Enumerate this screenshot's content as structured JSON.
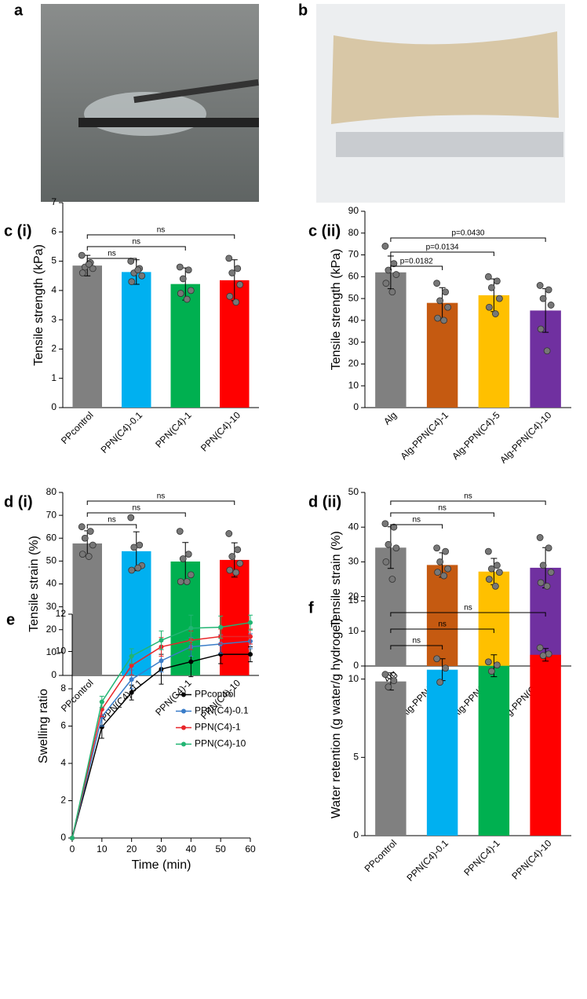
{
  "images": [
    {
      "panel": "a"
    },
    {
      "panel": "b"
    }
  ],
  "chart_data": [
    {
      "type": "bar",
      "panel": "c (i)",
      "y_label": "Tensile strength (kPa)",
      "categories": [
        "PPcontrol",
        "PPN(C4)-0.1",
        "PPN(C4)-1",
        "PPN(C4)-10"
      ],
      "values": [
        4.85,
        4.63,
        4.22,
        4.35
      ],
      "errors": [
        0.35,
        0.42,
        0.55,
        0.7
      ],
      "colors": [
        "#808080",
        "#00b0f0",
        "#00b050",
        "#ff0000"
      ],
      "points": [
        [
          5.2,
          4.95,
          4.8,
          4.75,
          4.6,
          4.9
        ],
        [
          5.0,
          4.75,
          4.6,
          4.5,
          4.3,
          4.7
        ],
        [
          4.8,
          4.7,
          4.4,
          4.0,
          3.9,
          3.7
        ],
        [
          5.1,
          4.75,
          4.6,
          4.2,
          3.8,
          3.6
        ]
      ],
      "comparisons": [
        {
          "label": "ns",
          "pair": [
            "PPcontrol",
            "PPN(C4)-0.1"
          ]
        },
        {
          "label": "ns",
          "pair": [
            "PPcontrol",
            "PPN(C4)-1"
          ]
        },
        {
          "label": "ns",
          "pair": [
            "PPcontrol",
            "PPN(C4)-10"
          ]
        }
      ],
      "ylim": [
        0,
        7
      ],
      "yticks": [
        0,
        1,
        2,
        3,
        4,
        5,
        6,
        7
      ]
    },
    {
      "type": "bar",
      "panel": "c (ii)",
      "y_label": "Tensile strength (kPa)",
      "categories": [
        "Alg",
        "Alg-PPN(C4)-1",
        "Alg-PPN(C4)-5",
        "Alg-PPN(C4)-10"
      ],
      "values": [
        62,
        48,
        51.5,
        44.5
      ],
      "errors": [
        7.5,
        7,
        7.5,
        10
      ],
      "colors": [
        "#808080",
        "#c55a11",
        "#ffc000",
        "#7030a0"
      ],
      "points": [
        [
          74,
          66,
          63,
          61,
          57,
          53
        ],
        [
          57,
          53,
          49,
          46,
          41,
          40
        ],
        [
          60,
          58,
          55,
          50,
          46,
          43
        ],
        [
          56,
          54,
          50,
          47,
          36,
          26
        ]
      ],
      "comparisons": [
        {
          "label": "p=0.0182",
          "pair": [
            "Alg",
            "Alg-PPN(C4)-1"
          ]
        },
        {
          "label": "p=0.0134",
          "pair": [
            "Alg",
            "Alg-PPN(C4)-5"
          ]
        },
        {
          "label": "p=0.0430",
          "pair": [
            "Alg",
            "Alg-PPN(C4)-10"
          ]
        }
      ],
      "ylim": [
        0,
        90
      ],
      "yticks": [
        0,
        10,
        20,
        30,
        40,
        50,
        60,
        70,
        80,
        90
      ]
    },
    {
      "type": "bar",
      "panel": "d (i)",
      "y_label": "Tensile strain (%)",
      "categories": [
        "PPcontrol",
        "PPN(C4)-0.1",
        "PPN(C4)-1",
        "PPN(C4)-10"
      ],
      "values": [
        57.7,
        54.3,
        49.8,
        50.5
      ],
      "errors": [
        5.5,
        8.5,
        8.3,
        7.5
      ],
      "colors": [
        "#808080",
        "#00b0f0",
        "#00b050",
        "#ff0000"
      ],
      "points": [
        [
          65,
          63,
          60,
          57,
          53,
          52
        ],
        [
          69,
          57,
          56,
          48,
          46,
          47
        ],
        [
          63,
          53,
          51,
          44,
          41,
          41
        ],
        [
          62,
          55,
          52,
          49,
          46,
          45
        ]
      ],
      "comparisons": [
        {
          "label": "ns",
          "pair": [
            "PPcontrol",
            "PPN(C4)-0.1"
          ]
        },
        {
          "label": "ns",
          "pair": [
            "PPcontrol",
            "PPN(C4)-1"
          ]
        },
        {
          "label": "ns",
          "pair": [
            "PPcontrol",
            "PPN(C4)-10"
          ]
        }
      ],
      "ylim": [
        0,
        80
      ],
      "yticks": [
        0,
        10,
        20,
        30,
        40,
        50,
        60,
        70,
        80
      ]
    },
    {
      "type": "bar",
      "panel": "d (ii)",
      "y_label": "Tensile strain (%)",
      "categories": [
        "Alg",
        "Alg-PPN(C4)-1",
        "Alg-PPN(C4)-5",
        "Alg-PPN(C4)-10"
      ],
      "values": [
        34.1,
        29.1,
        27.2,
        28.3
      ],
      "errors": [
        6,
        3.5,
        3.8,
        5.8
      ],
      "colors": [
        "#808080",
        "#c55a11",
        "#ffc000",
        "#7030a0"
      ],
      "points": [
        [
          41,
          40,
          35,
          34,
          30,
          25
        ],
        [
          34,
          33,
          30,
          28,
          27,
          26
        ],
        [
          33,
          29,
          28,
          27,
          25,
          23
        ],
        [
          37,
          34,
          29,
          27,
          24,
          23
        ]
      ],
      "comparisons": [
        {
          "label": "ns",
          "pair": [
            "Alg",
            "Alg-PPN(C4)-1"
          ]
        },
        {
          "label": "ns",
          "pair": [
            "Alg",
            "Alg-PPN(C4)-5"
          ]
        },
        {
          "label": "ns",
          "pair": [
            "Alg",
            "Alg-PPN(C4)-10"
          ]
        }
      ],
      "ylim": [
        0,
        50
      ],
      "yticks": [
        0,
        10,
        20,
        30,
        40,
        50
      ]
    },
    {
      "type": "line",
      "panel": "e",
      "x_label": "Time (min)",
      "y_label": "Swelling ratio",
      "x": [
        0,
        10,
        20,
        30,
        40,
        50,
        60
      ],
      "series": [
        {
          "name": "PPcontrol",
          "color": "#000000",
          "values": [
            0,
            5.95,
            7.8,
            9.05,
            9.45,
            9.85,
            9.85
          ],
          "errors": [
            0,
            0.6,
            0.4,
            0.8,
            0.8,
            0.5,
            0.4
          ]
        },
        {
          "name": "PPN(C4)-0.1",
          "color": "#3a7dc9",
          "values": [
            0,
            6.5,
            8.5,
            9.5,
            10.25,
            10.4,
            10.55
          ],
          "errors": [
            0,
            0.5,
            0.5,
            0.6,
            0.5,
            0.5,
            0.4
          ]
        },
        {
          "name": "PPN(C4)-1",
          "color": "#e8262a",
          "values": [
            0,
            6.9,
            9.25,
            10.25,
            10.6,
            10.8,
            10.8
          ],
          "errors": [
            0,
            0.4,
            0.5,
            0.5,
            0.5,
            0.4,
            0.4
          ]
        },
        {
          "name": "PPN(C4)-10",
          "color": "#22b573",
          "values": [
            0,
            7.3,
            9.75,
            10.6,
            11.25,
            11.3,
            11.55
          ],
          "errors": [
            0,
            0.3,
            0.4,
            0.5,
            0.7,
            0.6,
            0.4
          ]
        }
      ],
      "legend": "right",
      "xlim": [
        0,
        60
      ],
      "xticks": [
        0,
        10,
        20,
        30,
        40,
        50,
        60
      ],
      "ylim": [
        0,
        12
      ],
      "yticks": [
        0,
        2,
        4,
        6,
        8,
        10,
        12
      ]
    },
    {
      "type": "bar",
      "panel": "f",
      "y_label": "Water retention (g water/g hydrogel)",
      "categories": [
        "PPcontrol",
        "PPN(C4)-0.1",
        "PPN(C4)-1",
        "PPN(C4)-10"
      ],
      "values": [
        9.85,
        10.6,
        10.85,
        11.55
      ],
      "errors": [
        0.55,
        0.7,
        0.7,
        0.4
      ],
      "colors": [
        "#808080",
        "#00b0f0",
        "#00b050",
        "#ff0000"
      ],
      "points": [
        [
          10.3,
          9.9,
          9.5
        ],
        [
          11.3,
          10.7,
          9.8
        ],
        [
          11.1,
          10.9,
          10.5
        ],
        [
          12.0,
          11.6,
          11.5
        ]
      ],
      "comparisons": [
        {
          "label": "ns",
          "pair": [
            "PPcontrol",
            "PPN(C4)-0.1"
          ]
        },
        {
          "label": "ns",
          "pair": [
            "PPcontrol",
            "PPN(C4)-1"
          ]
        },
        {
          "label": "ns",
          "pair": [
            "PPcontrol",
            "PPN(C4)-10"
          ]
        }
      ],
      "ylim": [
        0,
        15
      ],
      "yticks": [
        0,
        5,
        10,
        15
      ]
    }
  ]
}
